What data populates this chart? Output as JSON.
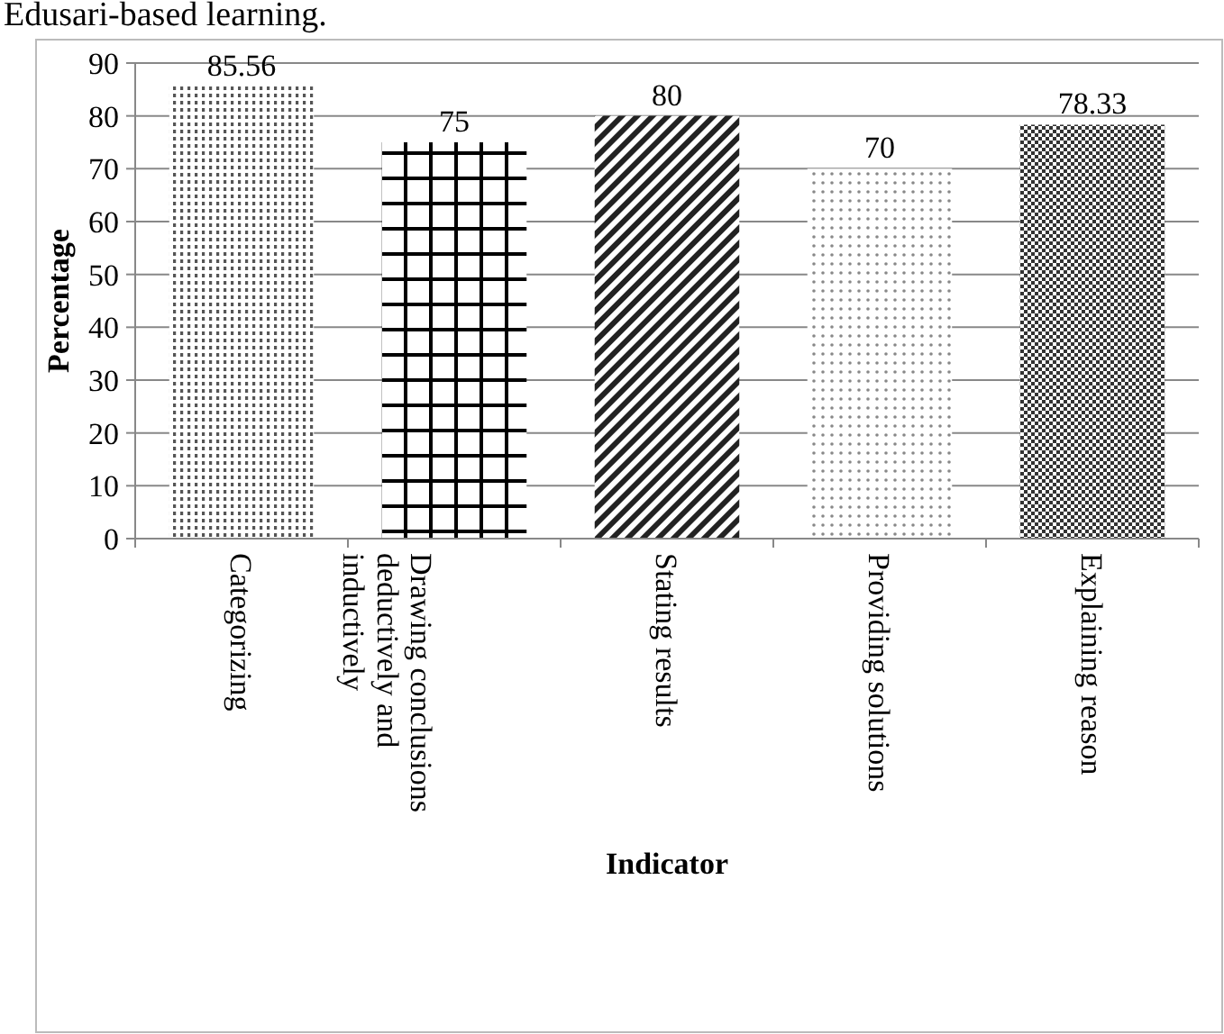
{
  "chart_data": {
    "type": "bar",
    "xlabel": "Indicator",
    "ylabel": "Percentage",
    "categories": [
      "Categorizing",
      "Drawing conclusions deductively and inductively",
      "Stating results",
      "Providing solutions",
      "Explaining reason"
    ],
    "values": [
      85.56,
      75,
      80,
      70,
      78.33
    ],
    "colors": [
      "#555555",
      "#000000",
      "#222222",
      "#888888",
      "#333333"
    ],
    "ylim": [
      0,
      90
    ],
    "yticks": [
      0,
      10,
      20,
      30,
      40,
      50,
      60,
      70,
      80,
      90
    ],
    "grid": "y",
    "data_labels": true,
    "annotations": [
      "Edusari-based learning."
    ]
  }
}
